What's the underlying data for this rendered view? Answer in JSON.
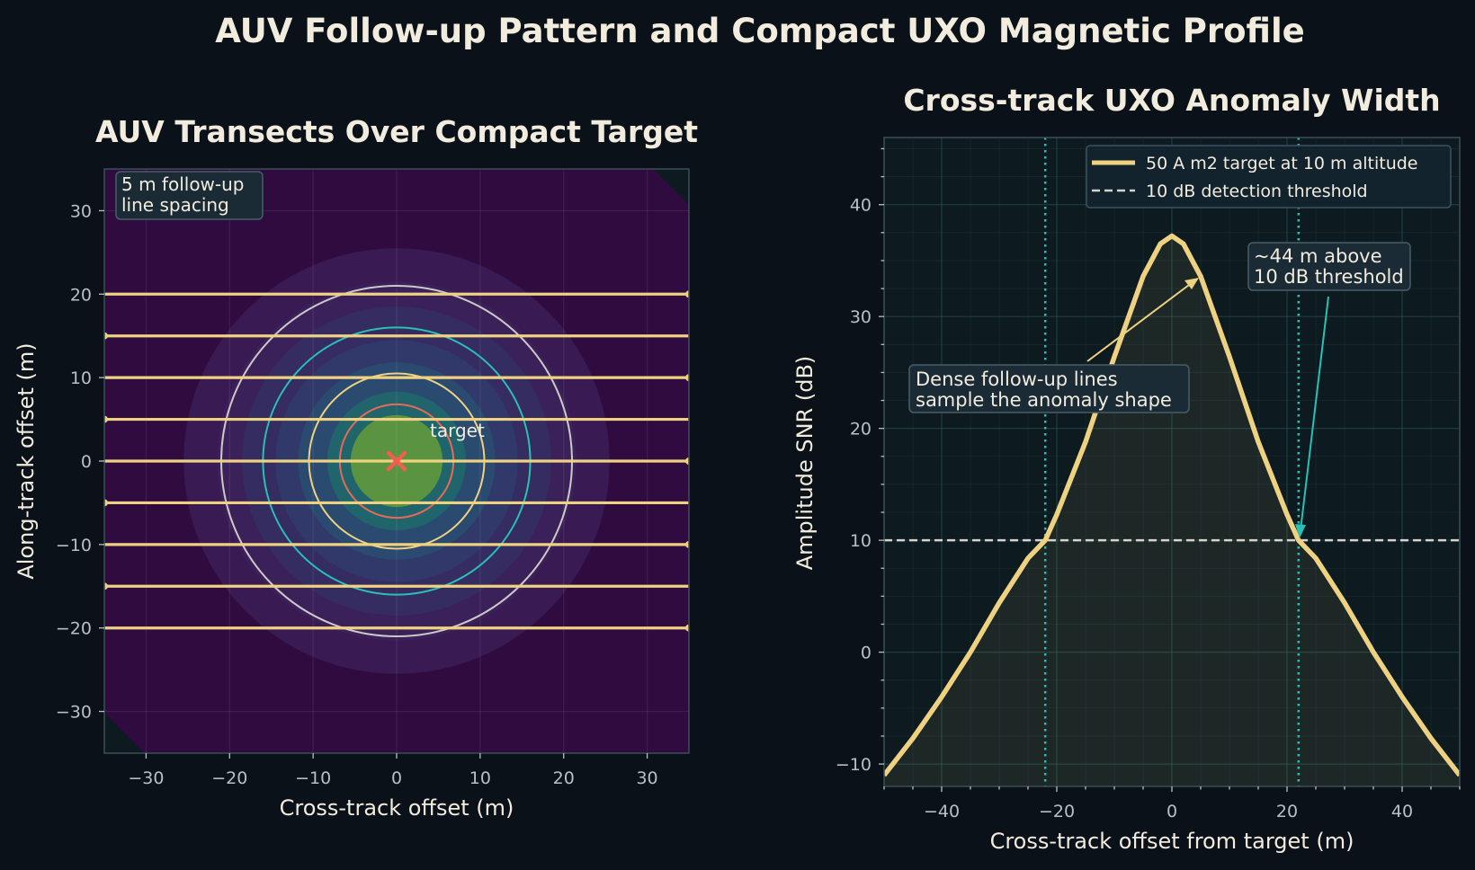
{
  "figure_title": "AUV Follow-up Pattern and Compact UXO Magnetic Profile",
  "colors": {
    "background": "#0a1118",
    "panel_left_bg": "#2f0b40",
    "panel_right_bg": "#0d1a20",
    "gold": "#efd281",
    "teal": "#2bc0b4",
    "red": "#e8695a",
    "white_ring": "#cfc8c8",
    "threshold": "#d8d2c8",
    "target_marker": "#f25d4f",
    "anomaly_core": "#5a9440",
    "text": "#f2ecde",
    "tick_text": "#b8c0c6"
  },
  "chart_data": [
    {
      "type": "heatmap",
      "title": "AUV Transects Over Compact Target",
      "xlabel": "Cross-track offset (m)",
      "ylabel": "Along-track offset (m)",
      "xlim": [
        -35,
        35
      ],
      "ylim": [
        -35,
        35
      ],
      "x_ticks": [
        -30,
        -20,
        -10,
        0,
        10,
        20,
        30
      ],
      "y_ticks": [
        -30,
        -20,
        -10,
        0,
        10,
        20,
        30
      ],
      "grid": true,
      "transect_lines_y": [
        20,
        15,
        10,
        5,
        0,
        -5,
        -10,
        -15,
        -20
      ],
      "transect_end_markers": [
        {
          "x": 35,
          "y": 20
        },
        {
          "x": -35,
          "y": 15
        },
        {
          "x": 35,
          "y": 10
        },
        {
          "x": -35,
          "y": 5
        },
        {
          "x": 35,
          "y": 0
        },
        {
          "x": -35,
          "y": -5
        },
        {
          "x": 35,
          "y": -10
        },
        {
          "x": -35,
          "y": -15
        },
        {
          "x": 35,
          "y": -20
        }
      ],
      "contour_rings": [
        {
          "radius": 21,
          "color": "#cfc8c8"
        },
        {
          "radius": 16,
          "color": "#2bc0b4"
        },
        {
          "radius": 10.5,
          "color": "#efd281"
        },
        {
          "radius": 6.8,
          "color": "#e8695a"
        }
      ],
      "fill_levels": [
        {
          "radius": 25.5,
          "color": "#3a1a52"
        },
        {
          "radius": 21.5,
          "color": "#3b2159"
        },
        {
          "radius": 18.5,
          "color": "#352c62"
        },
        {
          "radius": 14.5,
          "color": "#31386a"
        },
        {
          "radius": 11.8,
          "color": "#2a4a70"
        },
        {
          "radius": 8.3,
          "color": "#21656c"
        },
        {
          "radius": 5.5,
          "color": "#5a9440"
        }
      ],
      "target": {
        "x": 0,
        "y": 0,
        "label": "target"
      },
      "annotation": "5 m follow-up\nline spacing"
    },
    {
      "type": "line",
      "title": "Cross-track UXO Anomaly Width",
      "xlabel": "Cross-track offset from target (m)",
      "ylabel": "Amplitude SNR (dB)",
      "xlim": [
        -50,
        50
      ],
      "ylim": [
        -12,
        46
      ],
      "x_ticks": [
        -40,
        -20,
        0,
        20,
        40
      ],
      "y_ticks": [
        -10,
        0,
        10,
        20,
        30,
        40
      ],
      "grid": true,
      "legend_position": "top-right",
      "series": [
        {
          "name": "50 A m2 target at 10 m altitude",
          "x": [
            -50,
            -45,
            -40,
            -35,
            -30,
            -25,
            -22,
            -20,
            -15,
            -10,
            -5,
            -2,
            0,
            2,
            5,
            10,
            15,
            20,
            22,
            25,
            30,
            35,
            40,
            45,
            50
          ],
          "y": [
            -11.0,
            -7.7,
            -4.0,
            0.0,
            4.4,
            8.4,
            10.0,
            12.3,
            18.8,
            26.4,
            33.6,
            36.5,
            37.2,
            36.5,
            33.6,
            26.4,
            18.8,
            12.3,
            10.0,
            8.4,
            4.4,
            0.0,
            -4.0,
            -7.7,
            -11.0
          ]
        }
      ],
      "threshold": {
        "name": "10 dB detection threshold",
        "y": 10
      },
      "width_bounds_x": [
        -22,
        22
      ],
      "annotations": [
        {
          "text": "Dense follow-up lines\nsample the anomaly shape",
          "arrow_to": {
            "x": 4.5,
            "y": 33.2
          }
        },
        {
          "text": "~44 m above\n10 dB threshold",
          "arrow_to": {
            "x": 22,
            "y": 10.2
          }
        }
      ]
    }
  ]
}
